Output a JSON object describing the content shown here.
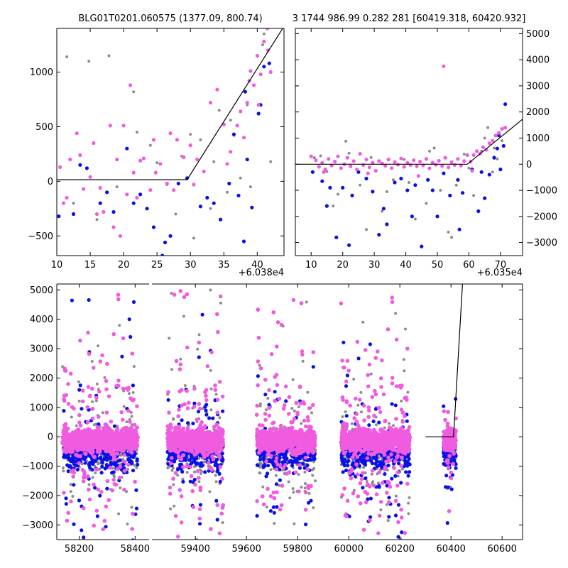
{
  "chart_data": [
    {
      "id": "panel_top_left",
      "type": "scatter",
      "title": "BLG01T0201.060575 (1377.09, 800.74)",
      "xlabel": "",
      "ylabel": "",
      "x_offset_label": "+6.038e4",
      "xlim": [
        10,
        44
      ],
      "ylim": [
        -680,
        1400
      ],
      "xticks": [
        10,
        15,
        20,
        25,
        30,
        35,
        40
      ],
      "xtick_labels": [
        "10",
        "15",
        "20",
        "25",
        "30",
        "35",
        "40"
      ],
      "yticks": [
        -500,
        0,
        500,
        1000
      ],
      "ytick_labels": [
        "−500",
        "0",
        "500",
        "1000"
      ],
      "grid": false,
      "model_line": {
        "x": [
          10,
          29.5,
          43.8
        ],
        "y": [
          15,
          15,
          1400
        ]
      },
      "series_gray": {
        "x": [
          11.5,
          14.8,
          17.8,
          21.5,
          24.0,
          26.5,
          28.7,
          30.0,
          31.5,
          33.0,
          34.3,
          35.5,
          36.0,
          37.5,
          39.0,
          40.8,
          42.0,
          12.5,
          16.0,
          19.0,
          22.0,
          25.0,
          27.8,
          30.5,
          33.5,
          36.5,
          38.5,
          41.0
        ],
        "y": [
          1140,
          1100,
          1150,
          820,
          330,
          -30,
          230,
          430,
          380,
          -250,
          650,
          -100,
          560,
          30,
          -50,
          1250,
          180,
          -200,
          -350,
          -50,
          450,
          170,
          -300,
          -520,
          180,
          420,
          700,
          1350
        ]
      },
      "series_blue": {
        "x": [
          10.3,
          12.5,
          14.5,
          16.5,
          18.5,
          20.5,
          22.5,
          24.5,
          25.8,
          27.0,
          29.5,
          31.5,
          33.5,
          34.5,
          35.8,
          36.5,
          37.2,
          38.0,
          38.5,
          39.2,
          40.2,
          41.0,
          13.5,
          17.5,
          21.5,
          23.5,
          26.2,
          28.2,
          32.5,
          38.2,
          40.5,
          41.8
        ],
        "y": [
          -320,
          -300,
          120,
          -200,
          -280,
          300,
          -120,
          -420,
          -680,
          -500,
          30,
          -230,
          -200,
          -350,
          -20,
          430,
          -130,
          -550,
          200,
          -240,
          620,
          1050,
          150,
          -100,
          -200,
          -250,
          -560,
          -20,
          -150,
          820,
          700,
          1080
        ]
      },
      "series_magenta": {
        "x": [
          10.5,
          11.5,
          12.0,
          13.0,
          14.0,
          15.0,
          15.5,
          16.5,
          17.0,
          18.0,
          19.0,
          19.5,
          20.0,
          21.0,
          21.5,
          22.5,
          23.0,
          24.0,
          24.5,
          25.5,
          26.5,
          27.0,
          28.0,
          29.0,
          30.0,
          31.0,
          32.0,
          33.0,
          34.0,
          35.0,
          36.0,
          37.0,
          37.5,
          38.0,
          38.5,
          39.0,
          39.5,
          40.0,
          40.5,
          41.0,
          41.5,
          42.0,
          11.0,
          13.5,
          16.0,
          18.5,
          20.5,
          22.0,
          24.8,
          27.5,
          30.5,
          35.5,
          38.8,
          40.2,
          41.6
        ],
        "y": [
          130,
          -150,
          200,
          440,
          -70,
          40,
          350,
          -60,
          -280,
          510,
          200,
          -500,
          510,
          880,
          80,
          190,
          210,
          -80,
          380,
          160,
          -20,
          440,
          380,
          220,
          330,
          200,
          90,
          720,
          840,
          520,
          270,
          510,
          640,
          400,
          720,
          1010,
          880,
          1150,
          980,
          1280,
          1400,
          1000,
          -200,
          240,
          -300,
          -420,
          -120,
          -150,
          80,
          -80,
          -30,
          160,
          920,
          700,
          1200
        ]
      }
    },
    {
      "id": "panel_top_right",
      "type": "scatter",
      "title": "3 1744 986.99 0.282 281 [60419.318, 60420.932]",
      "xlabel": "",
      "ylabel": "",
      "x_offset_label": "+6.035e4",
      "xlim": [
        5,
        77
      ],
      "ylim": [
        -3500,
        5200
      ],
      "xticks": [
        10,
        20,
        30,
        40,
        50,
        60,
        70
      ],
      "xtick_labels": [
        "10",
        "20",
        "30",
        "40",
        "50",
        "60",
        "70"
      ],
      "yticks": [
        -3000,
        -2000,
        -1000,
        0,
        1000,
        2000,
        3000,
        4000,
        5000
      ],
      "ytick_labels": [
        "−3000",
        "−2000",
        "−1000",
        "0",
        "1000",
        "2000",
        "3000",
        "4000",
        "5000"
      ],
      "grid": false,
      "model_line": {
        "x": [
          5,
          59.5,
          77
        ],
        "y": [
          0,
          0,
          1720
        ]
      },
      "series_gray": {
        "x": [
          11.0,
          15.0,
          18.5,
          22.0,
          25.5,
          29.0,
          32.5,
          36.0,
          39.5,
          43.0,
          46.5,
          49.0,
          51.0,
          53.5,
          56.0,
          58.5,
          61.5,
          64.0,
          66.0,
          67.5,
          69.0,
          70.5,
          13.0,
          17.0,
          21.0,
          27.5,
          34.0,
          41.0,
          47.5,
          54.5,
          60.0,
          65.0,
          68.0
        ],
        "y": [
          250,
          -280,
          -1150,
          420,
          -800,
          260,
          -1800,
          -600,
          180,
          -2100,
          -1500,
          620,
          -1000,
          -2600,
          -800,
          380,
          -1200,
          500,
          1400,
          -300,
          200,
          900,
          320,
          -1600,
          880,
          -2500,
          -1050,
          -700,
          500,
          -2800,
          -150,
          1000,
          620
        ]
      },
      "series_blue": {
        "x": [
          10.5,
          13.5,
          16.0,
          18.0,
          20.0,
          23.0,
          25.0,
          27.5,
          29.5,
          31.5,
          34.0,
          36.5,
          38.5,
          40.5,
          43.0,
          45.0,
          47.0,
          50.0,
          52.0,
          54.0,
          56.5,
          58.0,
          61.0,
          63.0,
          65.0,
          66.5,
          68.0,
          69.0,
          70.0,
          71.0,
          71.5,
          15.0,
          22.0,
          33.0,
          42.0,
          48.5,
          57.0,
          64.0,
          69.5
        ],
        "y": [
          -300,
          -650,
          -900,
          -2800,
          -900,
          -1200,
          -300,
          -550,
          -1050,
          -2700,
          -2300,
          -700,
          -550,
          -1000,
          -800,
          -3150,
          -600,
          -2000,
          -350,
          -1200,
          -600,
          -1100,
          -200,
          -1800,
          -1300,
          -400,
          250,
          600,
          -200,
          700,
          2300,
          -1600,
          -3100,
          -1700,
          -2000,
          -1000,
          -2500,
          -300,
          1100
        ]
      },
      "series_magenta": {
        "x": [
          10.0,
          11.5,
          12.5,
          13.5,
          14.5,
          15.5,
          16.5,
          17.5,
          18.5,
          19.5,
          20.5,
          21.5,
          22.5,
          23.5,
          24.5,
          25.5,
          26.5,
          27.5,
          28.5,
          29.5,
          30.5,
          31.5,
          32.5,
          33.5,
          34.5,
          35.5,
          36.5,
          37.5,
          38.5,
          39.5,
          40.5,
          41.5,
          42.5,
          43.5,
          44.5,
          45.5,
          46.5,
          47.5,
          48.5,
          49.5,
          50.5,
          51.5,
          52.5,
          53.5,
          54.5,
          55.5,
          56.5,
          57.5,
          58.5,
          59.5,
          60.5,
          61.5,
          62.5,
          63.5,
          64.5,
          65.5,
          66.5,
          67.5,
          68.5,
          69.5,
          70.5,
          71.5,
          52.0,
          14.0,
          28.0,
          44.0,
          61.0
        ],
        "y": [
          300,
          150,
          -100,
          50,
          -200,
          200,
          -50,
          100,
          300,
          -150,
          0,
          250,
          -80,
          120,
          -200,
          400,
          -30,
          180,
          -120,
          60,
          -250,
          120,
          30,
          -60,
          180,
          -150,
          80,
          -20,
          220,
          -100,
          50,
          -30,
          150,
          -80,
          100,
          -40,
          200,
          -160,
          60,
          -20,
          130,
          -70,
          250,
          -120,
          80,
          -30,
          200,
          -50,
          120,
          350,
          100,
          350,
          500,
          400,
          650,
          550,
          800,
          900,
          1100,
          1200,
          1350,
          1400,
          3750,
          -300,
          -350,
          -450,
          -250
        ]
      }
    },
    {
      "id": "panel_bottom",
      "type": "scatter",
      "title": "",
      "xlabel": "",
      "ylabel": "",
      "broken_axis": true,
      "segments": [
        {
          "xlim": [
            58120,
            58450
          ],
          "xticks": [
            58200,
            58400
          ],
          "xtick_labels": [
            "58200",
            "58400"
          ]
        },
        {
          "xlim": [
            59230,
            60680
          ],
          "xticks": [
            59400,
            59600,
            59800,
            60000,
            60200,
            60400,
            60600
          ],
          "xtick_labels": [
            "59400",
            "59600",
            "59800",
            "60000",
            "60200",
            "60400",
            "60600"
          ]
        }
      ],
      "ylim": [
        -3500,
        5200
      ],
      "yticks": [
        -3000,
        -2000,
        -1000,
        0,
        1000,
        2000,
        3000,
        4000,
        5000
      ],
      "ytick_labels": [
        "−3000",
        "−2000",
        "−1000",
        "0",
        "1000",
        "2000",
        "3000",
        "4000",
        "5000"
      ],
      "grid": false,
      "model_line": {
        "x": [
          60300,
          60410,
          60445
        ],
        "y": [
          0,
          0,
          5200
        ]
      },
      "seasons": [
        {
          "x_range": [
            58140,
            58410
          ],
          "y_spread": 2200,
          "tail": [
            -3500,
            4900
          ]
        },
        {
          "x_range": [
            59290,
            59510
          ],
          "y_spread": 2400,
          "tail": [
            -3500,
            5100
          ]
        },
        {
          "x_range": [
            59640,
            59870
          ],
          "y_spread": 2400,
          "tail": [
            -3300,
            5000
          ]
        },
        {
          "x_range": [
            59970,
            60240
          ],
          "y_spread": 2300,
          "tail": [
            -3300,
            4800
          ]
        },
        {
          "x_range": [
            60370,
            60420
          ],
          "y_spread": 1400,
          "tail": [
            -3000,
            1000
          ]
        }
      ]
    }
  ],
  "colors": {
    "gray": "#8c8c8c",
    "blue": "#0a10e6",
    "magenta": "#f05be0",
    "model": "#000000",
    "axes": "#000000"
  }
}
